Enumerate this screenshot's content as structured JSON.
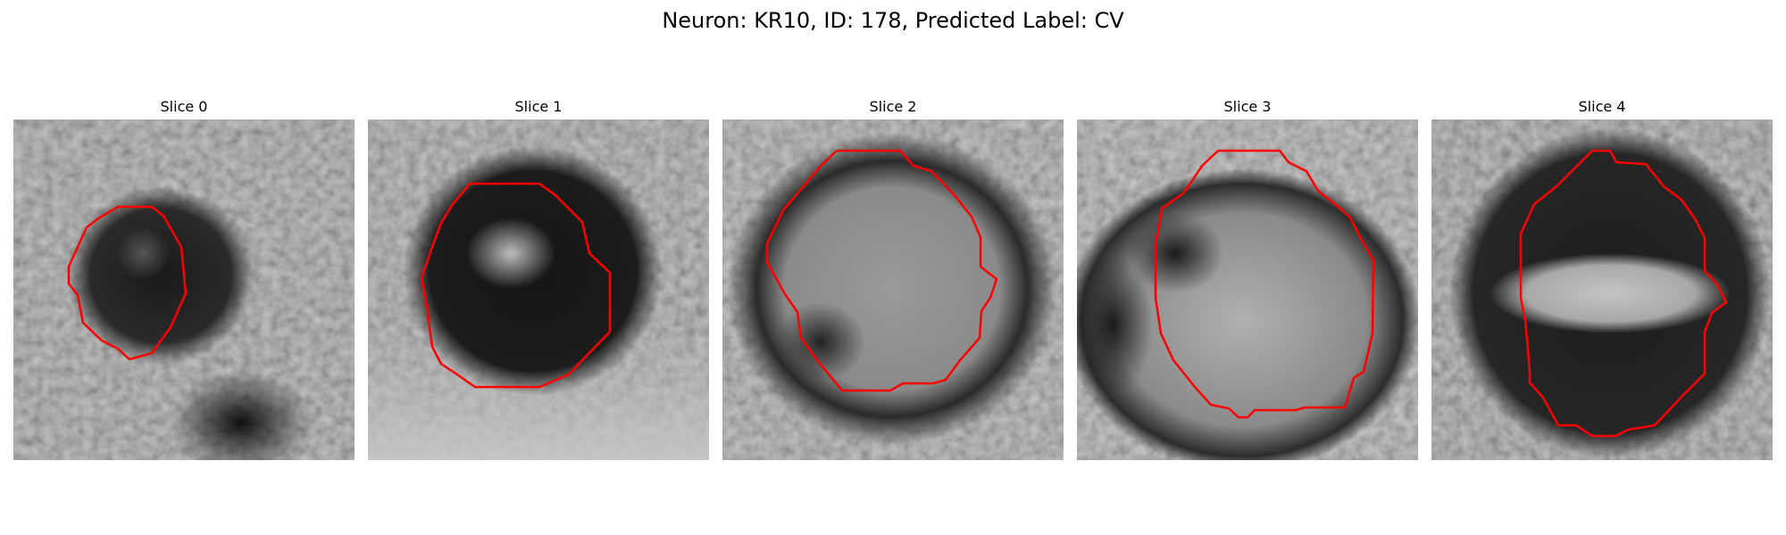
{
  "figure": {
    "title": "Neuron: KR10, ID: 178, Predicted Label: CV"
  },
  "slices": [
    {
      "label": "Slice 0"
    },
    {
      "label": "Slice 1"
    },
    {
      "label": "Slice 2"
    },
    {
      "label": "Slice 3"
    },
    {
      "label": "Slice 4"
    }
  ],
  "colors": {
    "contour": "#ff0000",
    "background": "#ffffff"
  }
}
